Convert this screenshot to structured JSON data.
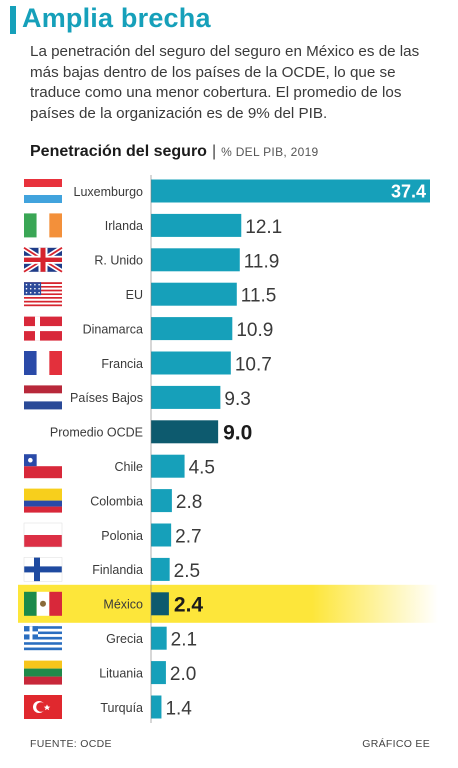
{
  "header": {
    "title": "Amplia brecha",
    "intro": "La penetración del seguro del seguro en México es de las más bajas dentro de los países de la OCDE, lo que se traduce como una menor cobertura. El promedio de los países de la organización es de 9% del PIB."
  },
  "chart_header": {
    "title": "Penetración del seguro",
    "separator": "|",
    "subtitle": "% DEL PIB, 2019"
  },
  "chart_data": {
    "type": "bar",
    "orientation": "horizontal",
    "categories": [
      "Luxemburgo",
      "Irlanda",
      "R. Unido",
      "EU",
      "Dinamarca",
      "Francia",
      "Países Bajos",
      "Promedio OCDE",
      "Chile",
      "Colombia",
      "Polonia",
      "Finlandia",
      "México",
      "Grecia",
      "Lituania",
      "Turquía"
    ],
    "value_labels": [
      "37.4",
      "12.1",
      "11.9",
      "11.5",
      "10.9",
      "10.7",
      "9.3",
      "9.0",
      "4.5",
      "2.8",
      "2.7",
      "2.5",
      "2.4",
      "2.1",
      "2.0",
      "1.4"
    ],
    "values": [
      37.4,
      12.1,
      11.9,
      11.5,
      10.9,
      10.7,
      9.3,
      9.0,
      4.5,
      2.8,
      2.7,
      2.5,
      2.4,
      2.1,
      2.0,
      1.4
    ],
    "flags": [
      "luxembourg-flag",
      "ireland-flag",
      "uk-flag",
      "us-flag",
      "denmark-flag",
      "france-flag",
      "netherlands-flag",
      "",
      "chile-flag",
      "colombia-flag",
      "poland-flag",
      "finland-flag",
      "mexico-flag",
      "greece-flag",
      "lithuania-flag",
      "turkey-flag"
    ],
    "highlighted": [
      "Promedio OCDE",
      "México"
    ],
    "xlim": [
      0,
      37.4
    ],
    "colors": {
      "bar": "#16a0ba",
      "average_bar": "#0d5a6e",
      "mexico_bar": "#0d5a6e",
      "mexico_band": "#fde63a",
      "axis": "#7a7a7a"
    }
  },
  "footer": {
    "source": "FUENTE: OCDE",
    "credit": "GRÁFICO EE"
  }
}
